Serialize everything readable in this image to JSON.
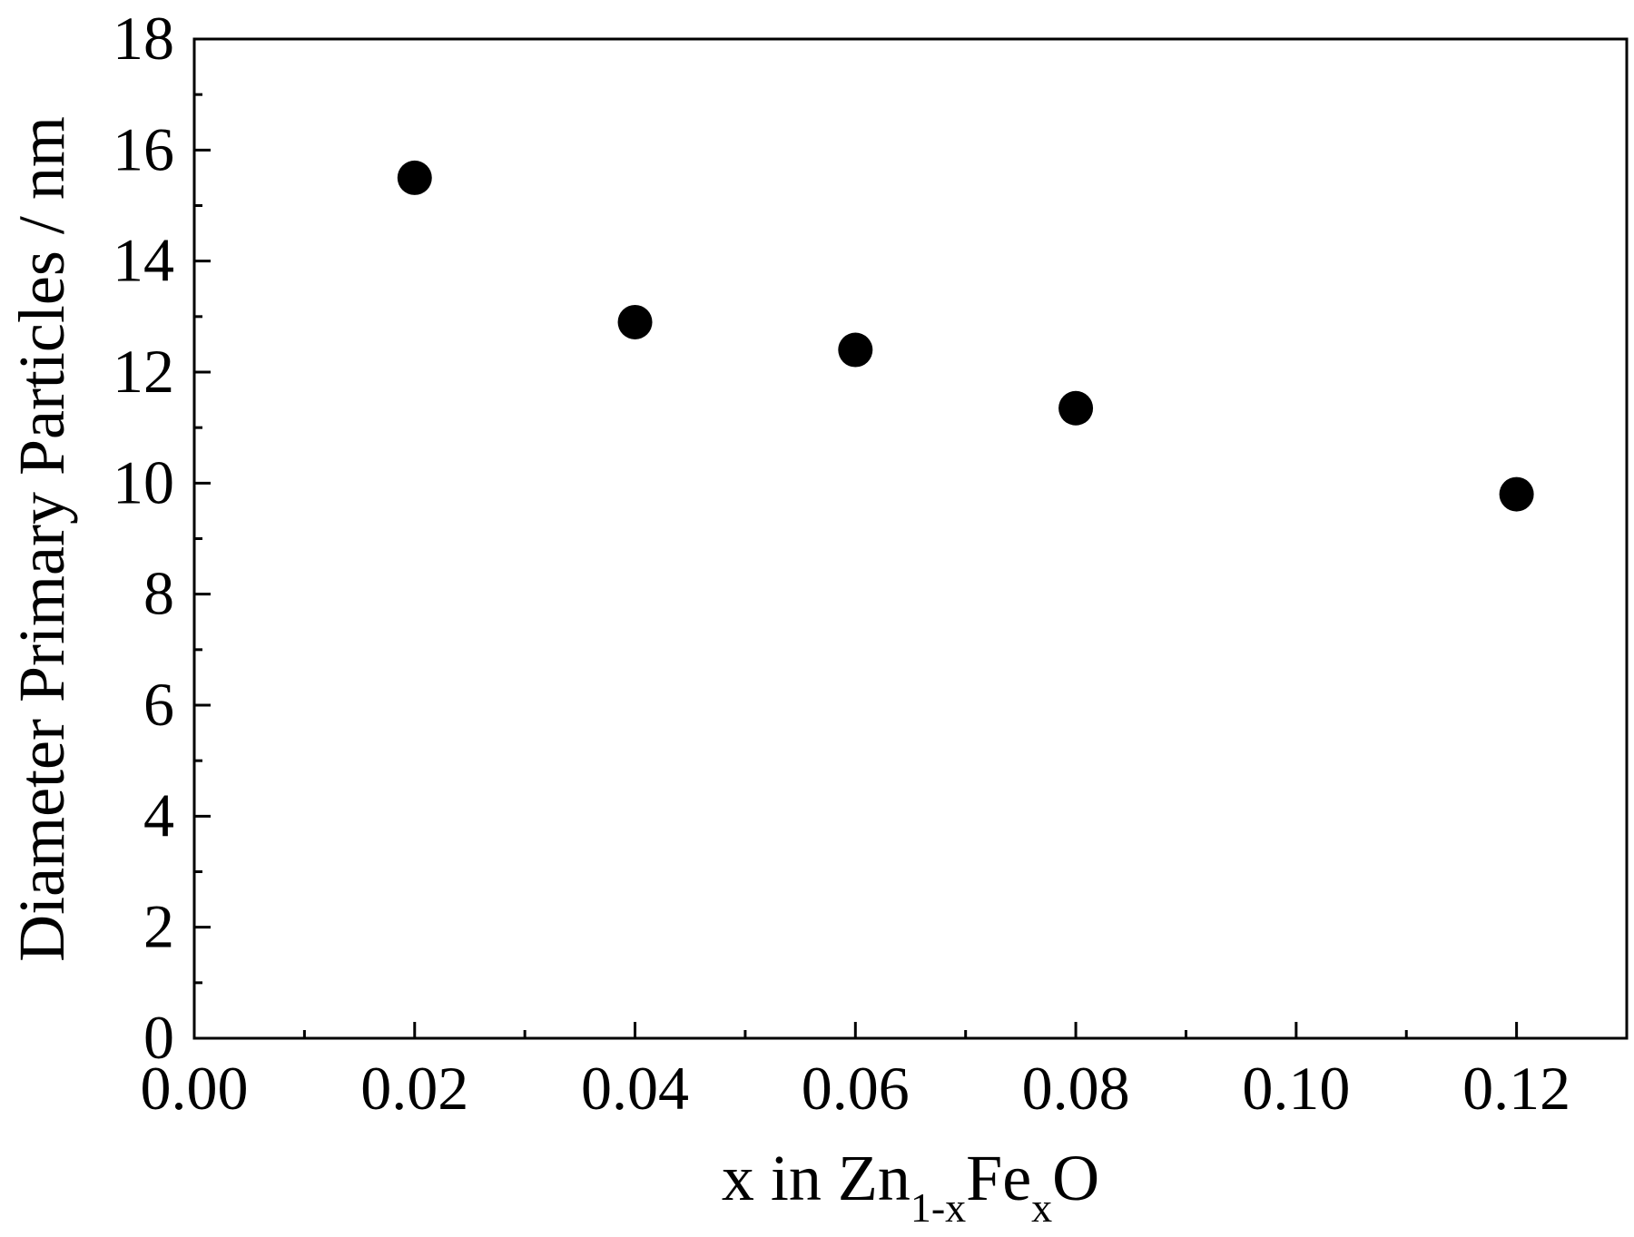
{
  "chart_data": {
    "type": "scatter",
    "title": "",
    "xlabel": "x in Zn",
    "xlabel_sub1": "1-x",
    "xlabel_mid": "Fe",
    "xlabel_sub2": "x",
    "xlabel_end": "O",
    "ylabel": "Diameter Primary Particles / nm",
    "xlim": [
      0.0,
      0.13
    ],
    "ylim": [
      0,
      18
    ],
    "xticks": [
      0.0,
      0.02,
      0.04,
      0.06,
      0.08,
      0.1,
      0.12
    ],
    "xtick_labels": [
      "0.00",
      "0.02",
      "0.04",
      "0.06",
      "0.08",
      "0.10",
      "0.12"
    ],
    "xminor": [
      0.01,
      0.03,
      0.05,
      0.07,
      0.09,
      0.11
    ],
    "yticks": [
      0,
      2,
      4,
      6,
      8,
      10,
      12,
      14,
      16,
      18
    ],
    "ytick_labels": [
      "0",
      "2",
      "4",
      "6",
      "8",
      "10",
      "12",
      "14",
      "16",
      "18"
    ],
    "yminor": [
      1,
      3,
      5,
      7,
      9,
      11,
      13,
      15,
      17
    ],
    "grid": false,
    "marker_color": "#000000",
    "series": [
      {
        "x": [
          0.02,
          0.04,
          0.06,
          0.08,
          0.12
        ],
        "y": [
          15.5,
          12.9,
          12.4,
          11.35,
          9.8
        ]
      }
    ]
  }
}
